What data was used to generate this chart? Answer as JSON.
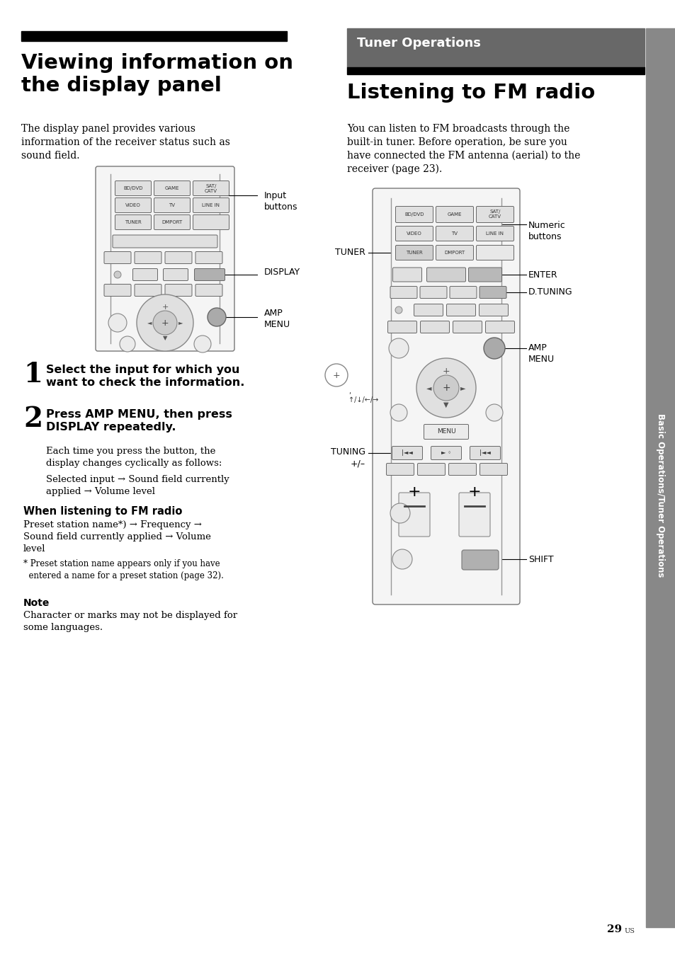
{
  "page_bg": "#ffffff",
  "left_title": "Viewing information on\nthe display panel",
  "right_section_header": "Tuner Operations",
  "right_section_header_bg": "#686868",
  "right_title": "Listening to FM radio",
  "left_body_text": "The display panel provides various\ninformation of the receiver status such as\nsound field.",
  "right_body_text": "You can listen to FM broadcasts through the\nbuilt-in tuner. Before operation, be sure you\nhave connected the FM antenna (aerial) to the\nreceiver (page 23).",
  "step1_num": "1",
  "step1_text": "Select the input for which you\nwant to check the information.",
  "step2_num": "2",
  "step2_text": "Press AMP MENU, then press\nDISPLAY repeatedly.",
  "step2_body": "Each time you press the button, the\ndisplay changes cyclically as follows:",
  "step2_flow": "Selected input → Sound field currently\napplied → Volume level",
  "when_header": "When listening to FM radio",
  "when_body": "Preset station name*) → Frequency →\nSound field currently applied → Volume\nlevel",
  "footnote": "* Preset station name appears only if you have\n  entered a name for a preset station (page 32).",
  "note_header": "Note",
  "note_body": "Character or marks may not be displayed for\nsome languages.",
  "page_num": "29",
  "sidebar_text": "Basic Operations/Tuner Operations",
  "input_label": "Input\nbuttons",
  "display_label": "DISPLAY",
  "amp_menu_label": "AMP\nMENU",
  "tuner_label": "TUNER",
  "numeric_label": "Numeric\nbuttons",
  "enter_label": "ENTER",
  "dtuning_label": "D.TUNING",
  "amp_menu_label2": "AMP\nMENU",
  "tuning_label": "TUNING\n+/–",
  "shift_label": "SHIFT"
}
